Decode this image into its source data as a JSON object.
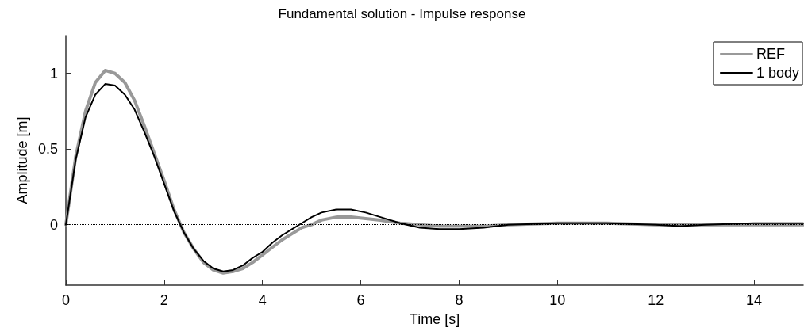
{
  "chart_data": {
    "type": "line",
    "title": "Fundamental solution - Impulse response",
    "xlabel": "Time [s]",
    "ylabel": "Amplitude [m]",
    "xlim": [
      0,
      15
    ],
    "xticks": [
      0,
      2,
      4,
      6,
      8,
      10,
      12,
      14
    ],
    "ylim": [
      -0.4,
      1.25
    ],
    "yticks": [
      0,
      0.5,
      1
    ],
    "grid": false,
    "legend": "top right",
    "marker": "none",
    "line_style": "solid",
    "ref_lines": [
      {
        "axis": "y",
        "value": 0,
        "color": "#000000",
        "line_style": "dotted"
      }
    ],
    "series": [
      {
        "name": "REF",
        "color": "#999999",
        "x": [
          0,
          0.2,
          0.4,
          0.6,
          0.8,
          1.0,
          1.2,
          1.4,
          1.6,
          1.8,
          2.0,
          2.2,
          2.4,
          2.6,
          2.8,
          3.0,
          3.2,
          3.4,
          3.6,
          3.8,
          4.0,
          4.2,
          4.4,
          4.6,
          4.8,
          5.0,
          5.2,
          5.5,
          5.8,
          6.1,
          6.4,
          6.8,
          7.2,
          7.6,
          8.0,
          8.5,
          9,
          10,
          11,
          12,
          13,
          14,
          15
        ],
        "values": [
          0,
          0.45,
          0.75,
          0.94,
          1.02,
          1.0,
          0.94,
          0.82,
          0.65,
          0.47,
          0.29,
          0.1,
          -0.05,
          -0.16,
          -0.25,
          -0.3,
          -0.32,
          -0.31,
          -0.29,
          -0.25,
          -0.2,
          -0.15,
          -0.1,
          -0.06,
          -0.02,
          0,
          0.03,
          0.05,
          0.05,
          0.04,
          0.03,
          0.01,
          0,
          -0.01,
          -0.01,
          -0.01,
          0,
          0.01,
          0.01,
          0,
          0,
          0,
          0
        ]
      },
      {
        "name": "1 body",
        "color": "#000000",
        "x": [
          0,
          0.2,
          0.4,
          0.6,
          0.8,
          1.0,
          1.2,
          1.4,
          1.6,
          1.8,
          2.0,
          2.2,
          2.4,
          2.6,
          2.8,
          3.0,
          3.2,
          3.4,
          3.6,
          3.8,
          4.0,
          4.2,
          4.4,
          4.6,
          4.8,
          5.0,
          5.2,
          5.5,
          5.8,
          6.1,
          6.4,
          6.8,
          7.2,
          7.6,
          8.0,
          8.5,
          9,
          10,
          11,
          12,
          12.5,
          13,
          14,
          15
        ],
        "values": [
          0,
          0.43,
          0.71,
          0.86,
          0.93,
          0.92,
          0.86,
          0.76,
          0.61,
          0.45,
          0.27,
          0.09,
          -0.05,
          -0.16,
          -0.24,
          -0.29,
          -0.31,
          -0.3,
          -0.27,
          -0.22,
          -0.18,
          -0.12,
          -0.07,
          -0.03,
          0.01,
          0.05,
          0.08,
          0.1,
          0.1,
          0.08,
          0.05,
          0.01,
          -0.02,
          -0.03,
          -0.03,
          -0.02,
          0,
          0.01,
          0.01,
          0,
          -0.01,
          0,
          0.01,
          0.01
        ]
      }
    ]
  }
}
